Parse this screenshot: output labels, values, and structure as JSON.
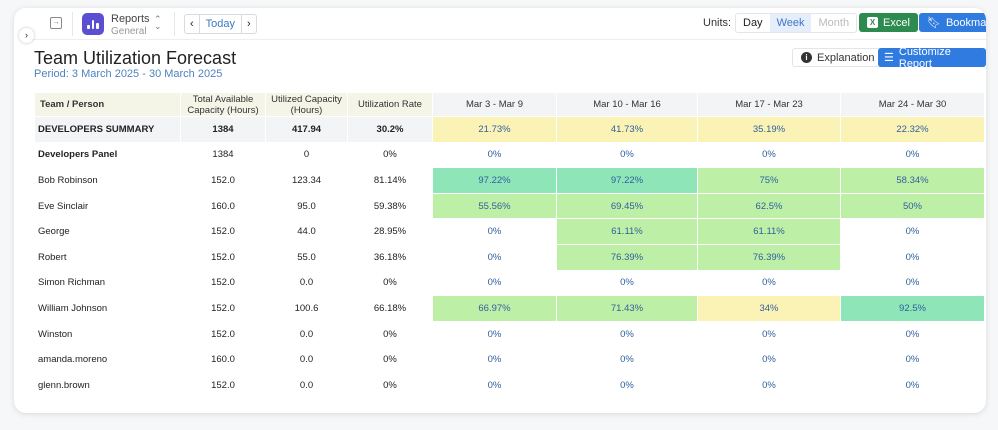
{
  "topbar": {
    "app": "Reports",
    "sub": "General",
    "today": "Today",
    "units_label": "Units:",
    "units": [
      "Day",
      "Week",
      "Month"
    ],
    "selected_unit": "Week",
    "excel": "Excel",
    "bookmark": "Bookmark"
  },
  "report": {
    "title": "Team Utilization Forecast",
    "period": "Period: 3 March 2025 - 30 March 2025",
    "explanation": "Explanation",
    "customize": "Customize Report"
  },
  "colors": {
    "teal": "#8ee6b8",
    "green": "#bdf0a6",
    "yellow": "#fbf3b5",
    "accent": "#2f7be0",
    "excel": "#2e8b4f"
  },
  "table": {
    "headers": [
      "Team / Person",
      "Total Available Capacity (Hours)",
      "Utilized Capacity (Hours)",
      "Utilization Rate",
      "Mar 3 - Mar 9",
      "Mar 10 - Mar 16",
      "Mar 17 - Mar 23",
      "Mar 24 - Mar 30"
    ],
    "rows": [
      {
        "name": "DEVELOPERS SUMMARY",
        "total": "1384",
        "used": "417.94",
        "rate": "30.2%",
        "weeks": [
          "21.73%",
          "41.73%",
          "35.19%",
          "22.32%"
        ],
        "levels": [
          "yellow",
          "yellow",
          "yellow",
          "yellow"
        ],
        "type": "summary"
      },
      {
        "name": "Developers Panel",
        "total": "1384",
        "used": "0",
        "rate": "0%",
        "weeks": [
          "0%",
          "0%",
          "0%",
          "0%"
        ],
        "levels": [
          "",
          "",
          "",
          ""
        ],
        "type": "panel"
      },
      {
        "name": "Bob Robinson",
        "total": "152.0",
        "used": "123.34",
        "rate": "81.14%",
        "weeks": [
          "97.22%",
          "97.22%",
          "75%",
          "58.34%"
        ],
        "levels": [
          "teal",
          "teal",
          "green",
          "green"
        ]
      },
      {
        "name": "Eve Sinclair",
        "total": "160.0",
        "used": "95.0",
        "rate": "59.38%",
        "weeks": [
          "55.56%",
          "69.45%",
          "62.5%",
          "50%"
        ],
        "levels": [
          "green",
          "green",
          "green",
          "green"
        ]
      },
      {
        "name": "George",
        "total": "152.0",
        "used": "44.0",
        "rate": "28.95%",
        "weeks": [
          "0%",
          "61.11%",
          "61.11%",
          "0%"
        ],
        "levels": [
          "",
          "green",
          "green",
          ""
        ]
      },
      {
        "name": "Robert",
        "total": "152.0",
        "used": "55.0",
        "rate": "36.18%",
        "weeks": [
          "0%",
          "76.39%",
          "76.39%",
          "0%"
        ],
        "levels": [
          "",
          "green",
          "green",
          ""
        ]
      },
      {
        "name": "Simon Richman",
        "total": "152.0",
        "used": "0.0",
        "rate": "0%",
        "weeks": [
          "0%",
          "0%",
          "0%",
          "0%"
        ],
        "levels": [
          "",
          "",
          "",
          ""
        ]
      },
      {
        "name": "William Johnson",
        "total": "152.0",
        "used": "100.6",
        "rate": "66.18%",
        "weeks": [
          "66.97%",
          "71.43%",
          "34%",
          "92.5%"
        ],
        "levels": [
          "green",
          "green",
          "yellow",
          "teal"
        ]
      },
      {
        "name": "Winston",
        "total": "152.0",
        "used": "0.0",
        "rate": "0%",
        "weeks": [
          "0%",
          "0%",
          "0%",
          "0%"
        ],
        "levels": [
          "",
          "",
          "",
          ""
        ]
      },
      {
        "name": "amanda.moreno",
        "total": "160.0",
        "used": "0.0",
        "rate": "0%",
        "weeks": [
          "0%",
          "0%",
          "0%",
          "0%"
        ],
        "levels": [
          "",
          "",
          "",
          ""
        ]
      },
      {
        "name": "glenn.brown",
        "total": "152.0",
        "used": "0.0",
        "rate": "0%",
        "weeks": [
          "0%",
          "0%",
          "0%",
          "0%"
        ],
        "levels": [
          "",
          "",
          "",
          ""
        ]
      }
    ]
  }
}
